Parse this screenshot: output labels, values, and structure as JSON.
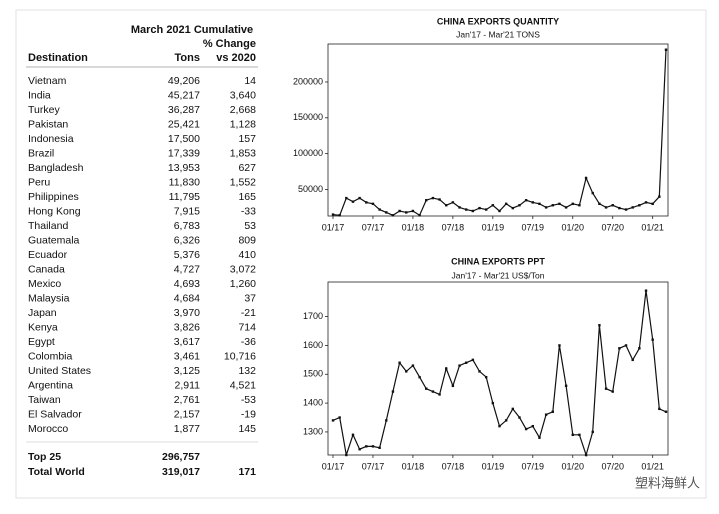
{
  "table": {
    "header": {
      "group": "March 2021 Cumulative",
      "change": "% Change",
      "destination": "Destination",
      "tons": "Tons",
      "vs": "vs 2020"
    },
    "rows": [
      [
        "Vietnam",
        "49,206",
        "14"
      ],
      [
        "India",
        "45,217",
        "3,640"
      ],
      [
        "Turkey",
        "36,287",
        "2,668"
      ],
      [
        "Pakistan",
        "25,421",
        "1,128"
      ],
      [
        "Indonesia",
        "17,500",
        "157"
      ],
      [
        "Brazil",
        "17,339",
        "1,853"
      ],
      [
        "Bangladesh",
        "13,953",
        "627"
      ],
      [
        "Peru",
        "11,830",
        "1,552"
      ],
      [
        "Philippines",
        "11,795",
        "165"
      ],
      [
        "Hong Kong",
        "7,915",
        "-33"
      ],
      [
        "Thailand",
        "6,783",
        "53"
      ],
      [
        "Guatemala",
        "6,326",
        "809"
      ],
      [
        "Ecuador",
        "5,376",
        "410"
      ],
      [
        "Canada",
        "4,727",
        "3,072"
      ],
      [
        "Mexico",
        "4,693",
        "1,260"
      ],
      [
        "Malaysia",
        "4,684",
        "37"
      ],
      [
        "Japan",
        "3,970",
        "-21"
      ],
      [
        "Kenya",
        "3,826",
        "714"
      ],
      [
        "Egypt",
        "3,617",
        "-36"
      ],
      [
        "Colombia",
        "3,461",
        "10,716"
      ],
      [
        "United States",
        "3,125",
        "132"
      ],
      [
        "Argentina",
        "2,911",
        "4,521"
      ],
      [
        "Taiwan",
        "2,761",
        "-53"
      ],
      [
        "El Salvador",
        "2,157",
        "-19"
      ],
      [
        "Morocco",
        "1,877",
        "145"
      ]
    ],
    "totals": [
      [
        "Top 25",
        "296,757",
        null
      ],
      [
        "Total World",
        "319,017",
        "171"
      ]
    ]
  },
  "chart_data": [
    {
      "type": "line",
      "title": "CHINA EXPORTS QUANTITY",
      "subtitle": "Jan'17 - Mar'21 TONS",
      "categories": [
        "01/17",
        null,
        null,
        null,
        null,
        null,
        "07/17",
        null,
        null,
        null,
        null,
        null,
        "01/18",
        null,
        null,
        null,
        null,
        null,
        "07/18",
        null,
        null,
        null,
        null,
        null,
        "01/19",
        null,
        null,
        null,
        null,
        null,
        "07/19",
        null,
        null,
        null,
        null,
        null,
        "01/20",
        null,
        null,
        null,
        null,
        null,
        "07/20",
        null,
        null,
        null,
        null,
        null,
        "01/21",
        null,
        null
      ],
      "series": [
        {
          "name": null,
          "color": "#111111",
          "values": [
            15000,
            14000,
            38000,
            33000,
            38000,
            32000,
            30000,
            22000,
            18000,
            14000,
            20000,
            18000,
            20000,
            14000,
            35000,
            38000,
            36000,
            28000,
            32000,
            25000,
            22000,
            20000,
            24000,
            22000,
            28000,
            20000,
            30000,
            24000,
            28000,
            35000,
            32000,
            30000,
            25000,
            28000,
            30000,
            25000,
            30000,
            28000,
            66000,
            45000,
            30000,
            25000,
            28000,
            24000,
            22000,
            25000,
            28000,
            32000,
            30000,
            40000,
            245000
          ]
        }
      ],
      "ylim": [
        13000,
        253000
      ],
      "yticks": [
        50000,
        100000,
        150000,
        200000
      ],
      "grid": false
    },
    {
      "type": "line",
      "title": "CHINA EXPORTS PPT",
      "subtitle": "Jan'17 - Mar'21 US$/Ton",
      "categories": [
        "01/17",
        null,
        null,
        null,
        null,
        null,
        "07/17",
        null,
        null,
        null,
        null,
        null,
        "01/18",
        null,
        null,
        null,
        null,
        null,
        "07/18",
        null,
        null,
        null,
        null,
        null,
        "01/19",
        null,
        null,
        null,
        null,
        null,
        "07/19",
        null,
        null,
        null,
        null,
        null,
        "01/20",
        null,
        null,
        null,
        null,
        null,
        "07/20",
        null,
        null,
        null,
        null,
        null,
        "01/21",
        null,
        null
      ],
      "series": [
        {
          "name": null,
          "color": "#111111",
          "values": [
            1340,
            1350,
            1220,
            1290,
            1240,
            1250,
            1250,
            1245,
            1340,
            1440,
            1540,
            1510,
            1530,
            1490,
            1450,
            1440,
            1430,
            1520,
            1460,
            1530,
            1540,
            1550,
            1510,
            1490,
            1400,
            1320,
            1340,
            1380,
            1350,
            1310,
            1320,
            1280,
            1360,
            1370,
            1600,
            1460,
            1290,
            1290,
            1220,
            1300,
            1670,
            1450,
            1440,
            1590,
            1600,
            1550,
            1590,
            1790,
            1620,
            1380,
            1370
          ]
        }
      ],
      "ylim": [
        1220,
        1820
      ],
      "yticks": [
        1300,
        1400,
        1500,
        1600,
        1700
      ],
      "grid": false
    }
  ],
  "watermark": "塑料海鲜人"
}
